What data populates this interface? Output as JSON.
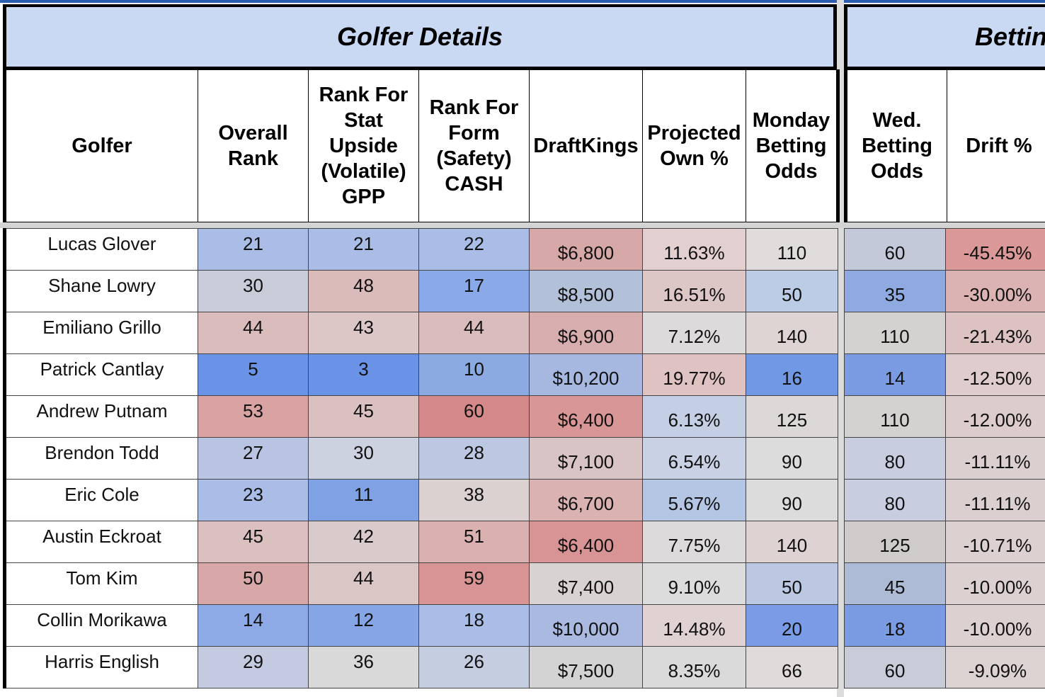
{
  "sections": {
    "golfer_details": "Golfer Details",
    "betting": "Betting"
  },
  "headers": {
    "golfer": "Golfer",
    "overall_rank": "Overall Rank",
    "rank_gpp": "Rank For Stat Upside (Volatile) GPP",
    "rank_cash": "Rank For Form (Safety) CASH",
    "draftkings": "DraftKings",
    "projected_own": "Projected Own %",
    "monday_odds": "Monday Betting Odds",
    "wed_odds": "Wed. Betting Odds",
    "drift": "Drift %"
  },
  "rows": [
    {
      "golfer": "Lucas Glover",
      "overall": "21",
      "gpp": "21",
      "cash": "22",
      "dk": "$6,800",
      "own": "11.63%",
      "mon": "110",
      "wed": "60",
      "drift": "-45.45%"
    },
    {
      "golfer": "Shane Lowry",
      "overall": "30",
      "gpp": "48",
      "cash": "17",
      "dk": "$8,500",
      "own": "16.51%",
      "mon": "50",
      "wed": "35",
      "drift": "-30.00%"
    },
    {
      "golfer": "Emiliano Grillo",
      "overall": "44",
      "gpp": "43",
      "cash": "44",
      "dk": "$6,900",
      "own": "7.12%",
      "mon": "140",
      "wed": "110",
      "drift": "-21.43%"
    },
    {
      "golfer": "Patrick Cantlay",
      "overall": "5",
      "gpp": "3",
      "cash": "10",
      "dk": "$10,200",
      "own": "19.77%",
      "mon": "16",
      "wed": "14",
      "drift": "-12.50%"
    },
    {
      "golfer": "Andrew Putnam",
      "overall": "53",
      "gpp": "45",
      "cash": "60",
      "dk": "$6,400",
      "own": "6.13%",
      "mon": "125",
      "wed": "110",
      "drift": "-12.00%"
    },
    {
      "golfer": "Brendon Todd",
      "overall": "27",
      "gpp": "30",
      "cash": "28",
      "dk": "$7,100",
      "own": "6.54%",
      "mon": "90",
      "wed": "80",
      "drift": "-11.11%"
    },
    {
      "golfer": "Eric Cole",
      "overall": "23",
      "gpp": "11",
      "cash": "38",
      "dk": "$6,700",
      "own": "5.67%",
      "mon": "90",
      "wed": "80",
      "drift": "-11.11%"
    },
    {
      "golfer": "Austin Eckroat",
      "overall": "45",
      "gpp": "42",
      "cash": "51",
      "dk": "$6,400",
      "own": "7.75%",
      "mon": "140",
      "wed": "125",
      "drift": "-10.71%"
    },
    {
      "golfer": "Tom Kim",
      "overall": "50",
      "gpp": "44",
      "cash": "59",
      "dk": "$7,400",
      "own": "9.10%",
      "mon": "50",
      "wed": "45",
      "drift": "-10.00%"
    },
    {
      "golfer": "Collin Morikawa",
      "overall": "14",
      "gpp": "12",
      "cash": "18",
      "dk": "$10,000",
      "own": "14.48%",
      "mon": "20",
      "wed": "18",
      "drift": "-10.00%"
    },
    {
      "golfer": "Harris English",
      "overall": "29",
      "gpp": "36",
      "cash": "26",
      "dk": "$7,500",
      "own": "8.35%",
      "mon": "66",
      "wed": "60",
      "drift": "-9.09%"
    }
  ],
  "colors": {
    "section_header_bg": "#c9d9f4",
    "scale_blue": "#5b88e8",
    "scale_neutral": "#d9d9d9",
    "scale_red": "#d98080"
  },
  "cell_colors": [
    [
      "#a9bde7",
      "#a9bde7",
      "#a9bde7",
      "#d6a8a8",
      "#e2cfcf",
      "#e0dcdc",
      "#c3c9d8",
      "#db9898"
    ],
    [
      "#c8ccd9",
      "#dbbaba",
      "#8aa9e8",
      "#b2c0d9",
      "#dcc6c6",
      "#bccbe6",
      "#8eaae0",
      "#dcb3b3"
    ],
    [
      "#dabcbc",
      "#dcc6c6",
      "#dabcbc",
      "#d7adad",
      "#dcdada",
      "#dfd4d4",
      "#d4d1d1",
      "#ddc2c2"
    ],
    [
      "#6a92e6",
      "#6a92e6",
      "#8caae2",
      "#a6b8e0",
      "#dfc2c2",
      "#7098e4",
      "#7a9be2",
      "#dfcdcd"
    ],
    [
      "#d9a3a3",
      "#dbc0c0",
      "#d48888",
      "#d89696",
      "#c4cfe3",
      "#ddd8d8",
      "#d4d1d1",
      "#ddcccc"
    ],
    [
      "#b8c4e1",
      "#cdd2e0",
      "#bcc8e2",
      "#d8c4c4",
      "#c8d2e4",
      "#dcdcdc",
      "#c8cde0",
      "#dccfcf"
    ],
    [
      "#a9bde7",
      "#7ea2e4",
      "#dcd1d1",
      "#dab2b2",
      "#b5c5e4",
      "#dcdcdc",
      "#c8cde0",
      "#dccfcf"
    ],
    [
      "#dbc0c0",
      "#d9cbcb",
      "#dbb0b0",
      "#d89494",
      "#dcdada",
      "#dfd2d2",
      "#cfcbcb",
      "#dcd0d0"
    ],
    [
      "#d8a8a8",
      "#dbc6c6",
      "#d89494",
      "#d8d2d2",
      "#dcdcdc",
      "#bcc7e2",
      "#aebbd6",
      "#dcd0d0"
    ],
    [
      "#8eaae6",
      "#85a5e4",
      "#a9bde7",
      "#aab9e0",
      "#e0d2d2",
      "#7a9be6",
      "#7a9ae2",
      "#dcd0d0"
    ],
    [
      "#c4cbe0",
      "#d9d9d9",
      "#c5cde0",
      "#d3d3d3",
      "#dadada",
      "#e0dada",
      "#c8cbd8",
      "#dcd2d2"
    ]
  ]
}
